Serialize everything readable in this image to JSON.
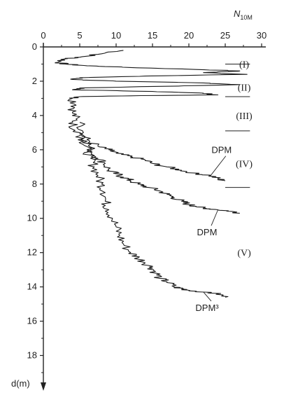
{
  "chart_data": {
    "type": "line",
    "title": "",
    "xlabel": {
      "main": "N",
      "sub": "10M"
    },
    "ylabel": "d(m)",
    "xlim": [
      0,
      30
    ],
    "ylim": [
      0,
      19
    ],
    "x_ticks": [
      "0",
      "5",
      "10",
      "15",
      "20",
      "25",
      "30"
    ],
    "x_tick_values": [
      0,
      5,
      10,
      15,
      20,
      25,
      30
    ],
    "y_ticks": [
      "0",
      "2",
      "4",
      "6",
      "8",
      "10",
      "12",
      "14",
      "16",
      "18"
    ],
    "y_tick_values": [
      0,
      2,
      4,
      6,
      8,
      10,
      12,
      14,
      16,
      18
    ],
    "y_inverted": true,
    "x_axis_position": "top",
    "grid": false,
    "layers": [
      {
        "label": "(I)",
        "depth": 1.0,
        "boundary_below": 1.0
      },
      {
        "label": "(II)",
        "depth": 2.35,
        "boundary_below": 2.9
      },
      {
        "label": "(III)",
        "depth": 4.0,
        "boundary_below": 4.9
      },
      {
        "label": "(IV)",
        "depth": 6.8,
        "boundary_below": 8.2
      },
      {
        "label": "(V)",
        "depth": 12.0,
        "boundary_below": null
      }
    ],
    "series": [
      {
        "label": "DPM",
        "label_depth": 6.2,
        "points": [
          [
            11,
            0.2
          ],
          [
            8,
            0.4
          ],
          [
            5,
            0.6
          ],
          [
            3,
            0.7
          ],
          [
            2,
            0.9
          ],
          [
            3,
            1.0
          ],
          [
            6,
            1.1
          ],
          [
            12,
            1.2
          ],
          [
            20,
            1.3
          ],
          [
            27,
            1.4
          ],
          [
            22,
            1.5
          ],
          [
            28,
            1.6
          ],
          [
            14,
            1.7
          ],
          [
            5,
            1.8
          ],
          [
            4,
            1.9
          ],
          [
            10,
            2.0
          ],
          [
            22,
            2.1
          ],
          [
            27,
            2.2
          ],
          [
            16,
            2.3
          ],
          [
            5,
            2.4
          ],
          [
            4,
            2.5
          ],
          [
            15,
            2.6
          ],
          [
            22,
            2.7
          ],
          [
            24,
            2.8
          ],
          [
            12,
            2.85
          ],
          [
            5,
            2.9
          ],
          [
            4,
            3.0
          ],
          [
            4.5,
            3.4
          ],
          [
            4,
            3.8
          ],
          [
            4.5,
            4.2
          ],
          [
            4,
            4.6
          ],
          [
            5,
            5.0
          ],
          [
            6,
            5.4
          ],
          [
            7.5,
            5.8
          ],
          [
            9,
            6.0
          ],
          [
            10,
            6.2
          ],
          [
            12,
            6.4
          ],
          [
            14,
            6.6
          ],
          [
            15,
            6.8
          ],
          [
            17,
            7.0
          ],
          [
            19,
            7.2
          ],
          [
            21,
            7.4
          ],
          [
            23,
            7.5
          ],
          [
            24,
            7.7
          ],
          [
            25,
            7.8
          ]
        ]
      },
      {
        "label": "DPM",
        "label_depth": 11.0,
        "points": [
          [
            5,
            4.4
          ],
          [
            5.5,
            5.0
          ],
          [
            6,
            5.5
          ],
          [
            6.5,
            6.0
          ],
          [
            7.5,
            6.5
          ],
          [
            8.5,
            6.8
          ],
          [
            9,
            7.2
          ],
          [
            10,
            7.4
          ],
          [
            11,
            7.6
          ],
          [
            12,
            7.8
          ],
          [
            13,
            8.0
          ],
          [
            14.5,
            8.2
          ],
          [
            16,
            8.4
          ],
          [
            17,
            8.6
          ],
          [
            18,
            8.8
          ],
          [
            19,
            9.0
          ],
          [
            20,
            9.2
          ],
          [
            21,
            9.3
          ],
          [
            22,
            9.4
          ],
          [
            24,
            9.5
          ],
          [
            26,
            9.6
          ],
          [
            27,
            9.7
          ]
        ]
      },
      {
        "label": "DPM³",
        "label_depth": 15.4,
        "points": [
          [
            5,
            5.0
          ],
          [
            5.5,
            5.5
          ],
          [
            6,
            6.0
          ],
          [
            6.5,
            6.5
          ],
          [
            7,
            7.0
          ],
          [
            7.5,
            7.5
          ],
          [
            8,
            8.0
          ],
          [
            8.5,
            8.5
          ],
          [
            8.5,
            9.0
          ],
          [
            9,
            9.5
          ],
          [
            9.5,
            10.0
          ],
          [
            10,
            10.5
          ],
          [
            10.5,
            11.0
          ],
          [
            11,
            11.5
          ],
          [
            12,
            12.0
          ],
          [
            13,
            12.3
          ],
          [
            14,
            12.6
          ],
          [
            15,
            12.9
          ],
          [
            15.5,
            13.2
          ],
          [
            16,
            13.5
          ],
          [
            17,
            13.7
          ],
          [
            18,
            14.0
          ],
          [
            19,
            14.1
          ],
          [
            20,
            14.2
          ],
          [
            22,
            14.3
          ],
          [
            24,
            14.4
          ],
          [
            25,
            14.6
          ]
        ]
      }
    ]
  }
}
